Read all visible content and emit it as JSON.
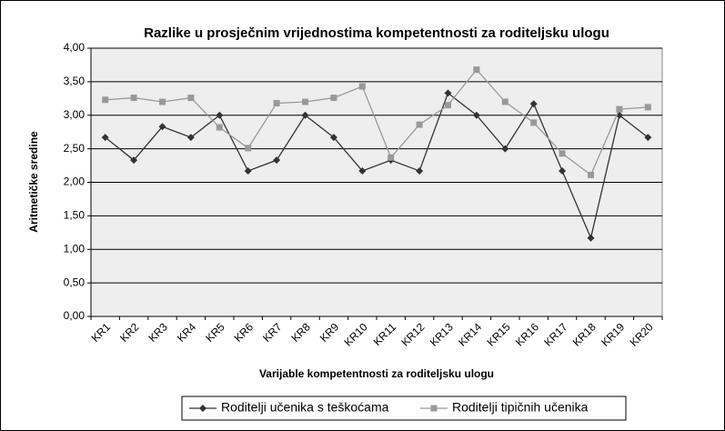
{
  "chart_data": {
    "type": "line",
    "title": "Razlike u prosječnim vrijednostima kompetentnosti za roditeljsku ulogu",
    "x_label": "Varijable kompetentnosti za roditeljsku ulogu",
    "y_label": "Aritmetičke sredine",
    "categories": [
      "KR1",
      "KR2",
      "KR3",
      "KR4",
      "KR5",
      "KR6",
      "KR7",
      "KR8",
      "KR9",
      "KR10",
      "KR11",
      "KR12",
      "KR13",
      "KR14",
      "KR15",
      "KR16",
      "KR17",
      "KR18",
      "KR19",
      "KR20"
    ],
    "series": [
      {
        "name": "Roditelji učenika s teškoćama",
        "color": "#333333",
        "marker": "diamond",
        "values": [
          2.67,
          2.33,
          2.83,
          2.67,
          3.0,
          2.17,
          2.33,
          3.0,
          2.67,
          2.17,
          2.33,
          2.17,
          3.33,
          3.0,
          2.5,
          3.17,
          2.17,
          1.17,
          3.0,
          2.67
        ]
      },
      {
        "name": "Roditelji tipičnih učenika",
        "color": "#999999",
        "marker": "square",
        "values": [
          3.23,
          3.26,
          3.2,
          3.26,
          2.82,
          2.51,
          3.18,
          3.2,
          3.26,
          3.43,
          2.37,
          2.86,
          3.15,
          3.68,
          3.2,
          2.89,
          2.43,
          2.11,
          3.09,
          3.12
        ]
      }
    ],
    "ylim": [
      0,
      4
    ],
    "yticks": [
      {
        "value": 0,
        "label": "0,00"
      },
      {
        "value": 0.5,
        "label": "0,50"
      },
      {
        "value": 1,
        "label": "1,00"
      },
      {
        "value": 1.5,
        "label": "1,50"
      },
      {
        "value": 2,
        "label": "2,00"
      },
      {
        "value": 2.5,
        "label": "2,50"
      },
      {
        "value": 3,
        "label": "3,00"
      },
      {
        "value": 3.5,
        "label": "3,50"
      },
      {
        "value": 4,
        "label": "4,00"
      }
    ],
    "grid": true,
    "legend": "bottom"
  }
}
